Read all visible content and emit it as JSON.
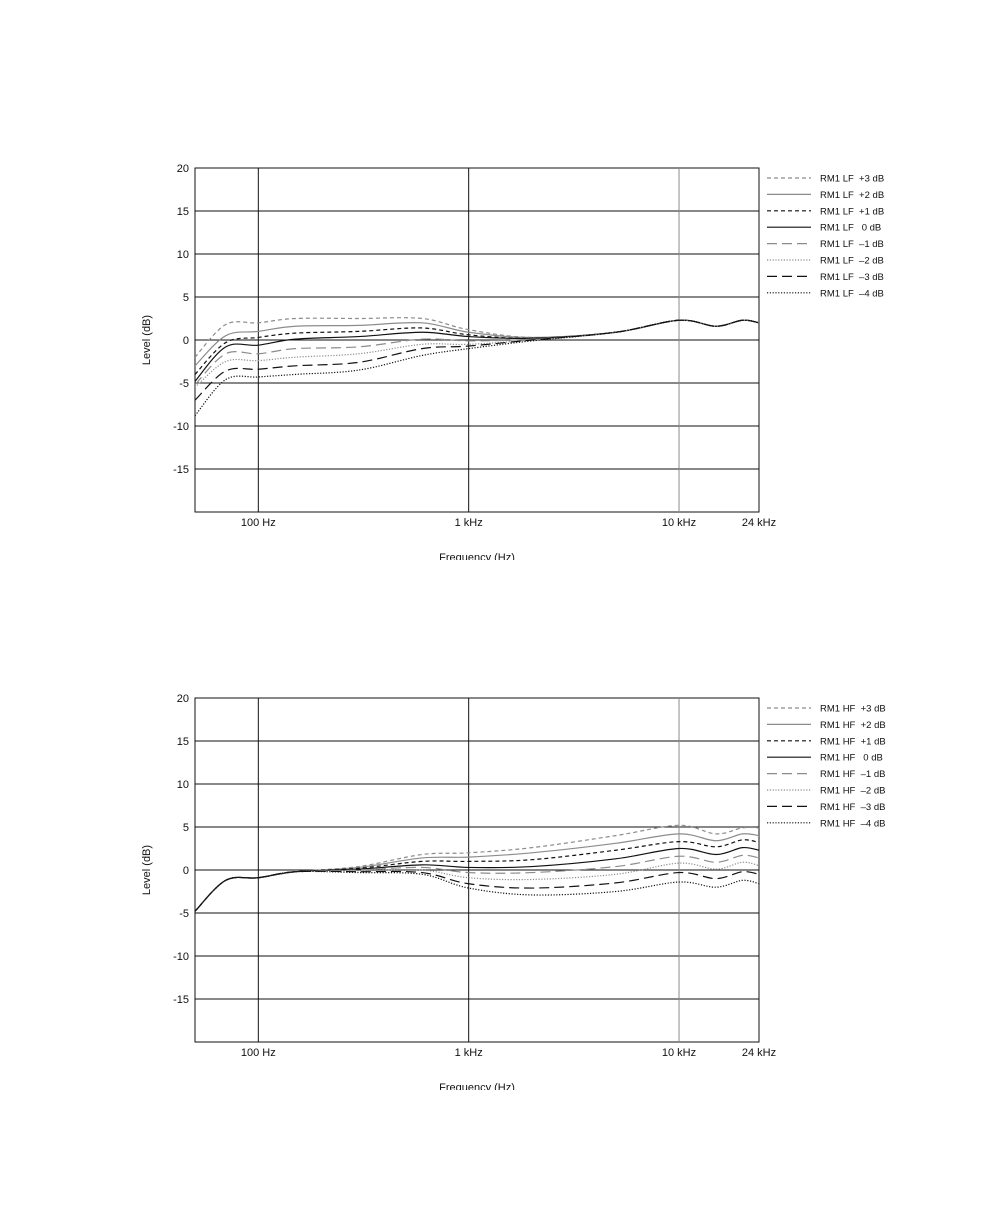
{
  "chart_data": [
    {
      "type": "line",
      "xlabel": "Frequency (Hz)",
      "ylabel": "Level (dB)",
      "x_scale": "log",
      "xlim": [
        50,
        24000
      ],
      "ylim": [
        -20,
        20
      ],
      "y_ticks": [
        20,
        15,
        10,
        5,
        0,
        -5,
        -10,
        -15
      ],
      "y_tick_labels": [
        "20",
        "15",
        "10",
        "5",
        "0",
        "-5",
        "-10",
        "-15"
      ],
      "x_ticks": [
        100,
        1000,
        10000,
        24000
      ],
      "x_tick_labels": [
        "100 Hz",
        "1 kHz",
        "10 kHz",
        "24 kHz"
      ],
      "grid": true,
      "legend_position": "right",
      "x": [
        50,
        70,
        100,
        150,
        300,
        600,
        1000,
        2000,
        5000,
        10000,
        15000,
        20000,
        24000
      ],
      "series": [
        {
          "name": "RM1 LF  +3 dB",
          "style": "dash-short",
          "color": "#8c8c8c",
          "values": [
            -2.0,
            1.8,
            2.0,
            2.5,
            2.5,
            2.5,
            1.2,
            0.3,
            0.9,
            2.3,
            1.6,
            2.3,
            2.0
          ]
        },
        {
          "name": "RM1 LF  +2 dB",
          "style": "solid",
          "color": "#8c8c8c",
          "values": [
            -3.0,
            0.5,
            1.0,
            1.6,
            1.7,
            2.0,
            0.9,
            0.3,
            0.9,
            2.3,
            1.6,
            2.3,
            2.0
          ]
        },
        {
          "name": "RM1 LF  +1 dB",
          "style": "dash-short",
          "color": "#111111",
          "values": [
            -4.0,
            -0.3,
            0.3,
            0.8,
            1.0,
            1.4,
            0.6,
            0.2,
            0.9,
            2.3,
            1.6,
            2.3,
            2.0
          ]
        },
        {
          "name": "RM1 LF   0 dB",
          "style": "solid",
          "color": "#111111",
          "values": [
            -4.8,
            -0.8,
            -0.6,
            0.1,
            0.4,
            0.9,
            0.4,
            0.2,
            0.9,
            2.3,
            1.6,
            2.3,
            2.0
          ]
        },
        {
          "name": "RM1 LF  –1 dB",
          "style": "dash-long",
          "color": "#8c8c8c",
          "values": [
            -5.2,
            -1.6,
            -1.6,
            -1.0,
            -0.8,
            0.1,
            -0.1,
            0.1,
            0.9,
            2.3,
            1.6,
            2.3,
            2.0
          ]
        },
        {
          "name": "RM1 LF  –2 dB",
          "style": "dot",
          "color": "#8c8c8c",
          "values": [
            -5.5,
            -2.5,
            -2.4,
            -2.0,
            -1.6,
            -0.5,
            -0.5,
            0.0,
            0.9,
            2.3,
            1.6,
            2.3,
            2.0
          ]
        },
        {
          "name": "RM1 LF  –3 dB",
          "style": "dash-long",
          "color": "#111111",
          "values": [
            -7.0,
            -3.6,
            -3.4,
            -3.0,
            -2.6,
            -1.0,
            -0.7,
            0.0,
            0.9,
            2.3,
            1.6,
            2.3,
            2.0
          ]
        },
        {
          "name": "RM1 LF  –4 dB",
          "style": "dot",
          "color": "#111111",
          "values": [
            -8.8,
            -4.6,
            -4.3,
            -4.0,
            -3.5,
            -1.8,
            -1.0,
            -0.1,
            0.9,
            2.3,
            1.6,
            2.3,
            2.0
          ]
        }
      ]
    },
    {
      "type": "line",
      "xlabel": "Frequency (Hz)",
      "ylabel": "Level (dB)",
      "x_scale": "log",
      "xlim": [
        50,
        24000
      ],
      "ylim": [
        -20,
        20
      ],
      "y_ticks": [
        20,
        15,
        10,
        5,
        0,
        -5,
        -10,
        -15
      ],
      "y_tick_labels": [
        "20",
        "15",
        "10",
        "5",
        "0",
        "-5",
        "-10",
        "-15"
      ],
      "x_ticks": [
        100,
        1000,
        10000,
        24000
      ],
      "x_tick_labels": [
        "100 Hz",
        "1 kHz",
        "10 kHz",
        "24 kHz"
      ],
      "grid": true,
      "legend_position": "right",
      "x": [
        50,
        70,
        100,
        150,
        300,
        600,
        1000,
        2000,
        5000,
        10000,
        15000,
        20000,
        24000
      ],
      "series": [
        {
          "name": "RM1 HF  +3 dB",
          "style": "dash-short",
          "color": "#8c8c8c",
          "values": [
            -4.8,
            -1.2,
            -0.9,
            -0.2,
            0.4,
            1.8,
            2.0,
            2.6,
            4.0,
            5.2,
            4.2,
            4.9,
            4.9
          ]
        },
        {
          "name": "RM1 HF  +2 dB",
          "style": "solid",
          "color": "#8c8c8c",
          "values": [
            -4.8,
            -1.2,
            -0.9,
            -0.2,
            0.3,
            1.4,
            1.5,
            2.0,
            3.1,
            4.2,
            3.4,
            4.2,
            4.0
          ]
        },
        {
          "name": "RM1 HF  +1 dB",
          "style": "dash-short",
          "color": "#111111",
          "values": [
            -4.8,
            -1.2,
            -0.9,
            -0.2,
            0.2,
            1.0,
            1.0,
            1.2,
            2.3,
            3.3,
            2.7,
            3.5,
            3.2
          ]
        },
        {
          "name": "RM1 HF   0 dB",
          "style": "solid",
          "color": "#111111",
          "values": [
            -4.8,
            -1.2,
            -0.9,
            -0.2,
            0.1,
            0.6,
            0.3,
            0.4,
            1.3,
            2.5,
            1.8,
            2.6,
            2.3
          ]
        },
        {
          "name": "RM1 HF  –1 dB",
          "style": "dash-long",
          "color": "#8c8c8c",
          "values": [
            -4.8,
            -1.2,
            -0.9,
            -0.2,
            0.0,
            0.3,
            -0.3,
            -0.3,
            0.4,
            1.6,
            0.9,
            1.7,
            1.4
          ]
        },
        {
          "name": "RM1 HF  –2 dB",
          "style": "dot",
          "color": "#8c8c8c",
          "values": [
            -4.8,
            -1.2,
            -0.9,
            -0.2,
            -0.1,
            0.0,
            -0.9,
            -1.1,
            -0.5,
            0.8,
            0.1,
            0.9,
            0.5
          ]
        },
        {
          "name": "RM1 HF  –3 dB",
          "style": "dash-long",
          "color": "#111111",
          "values": [
            -4.8,
            -1.2,
            -0.9,
            -0.2,
            -0.2,
            -0.3,
            -1.6,
            -2.1,
            -1.5,
            -0.3,
            -1.0,
            -0.2,
            -0.5
          ]
        },
        {
          "name": "RM1 HF  –4 dB",
          "style": "dot",
          "color": "#111111",
          "values": [
            -4.8,
            -1.2,
            -0.9,
            -0.2,
            -0.3,
            -0.5,
            -2.1,
            -2.9,
            -2.5,
            -1.4,
            -2.0,
            -1.2,
            -1.6
          ]
        }
      ]
    }
  ]
}
